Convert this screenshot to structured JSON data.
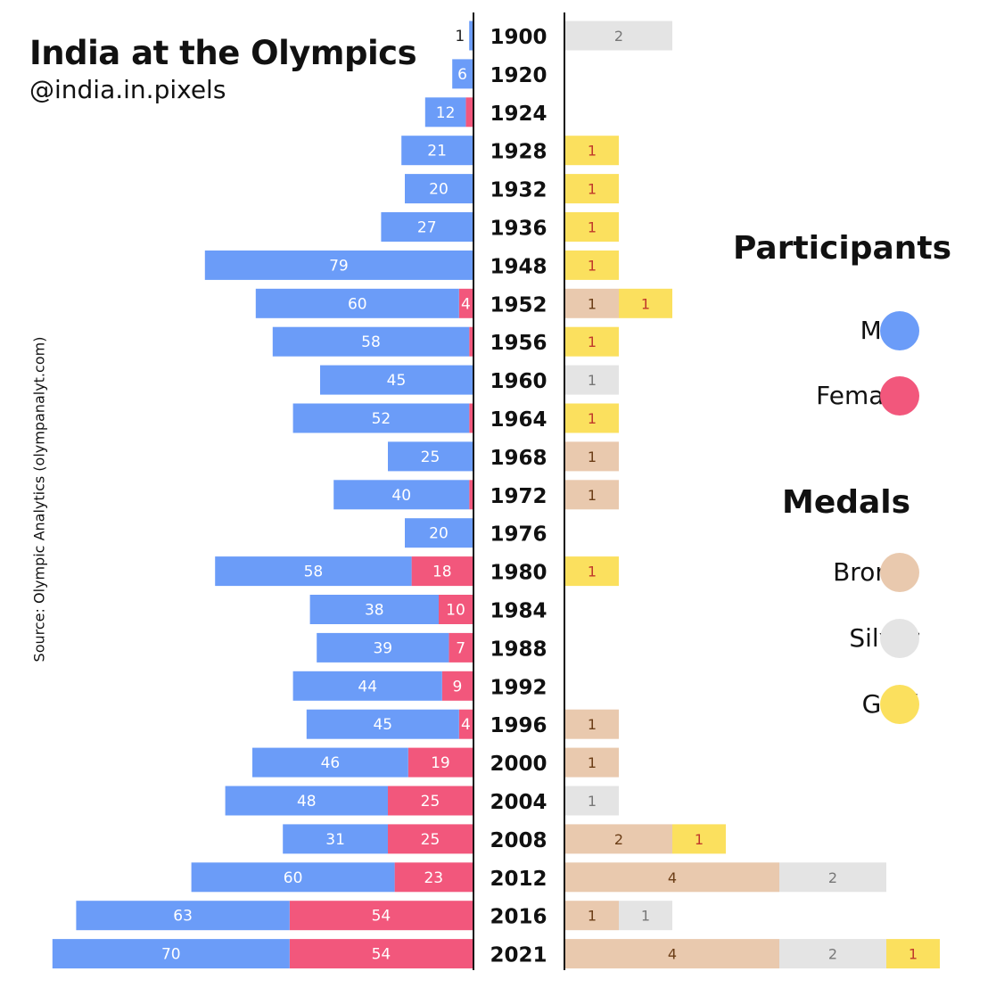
{
  "title": "India at the Olympics",
  "handle": "@india.in.pixels",
  "source": "Source: Olympic Analytics (olympanalyt.com)",
  "legend": {
    "participants_title": "Participants",
    "male": "Male",
    "females": "Females",
    "medals_title": "Medals",
    "bronze": "Bronze",
    "silver": "Silver",
    "gold": "Gold"
  },
  "colors": {
    "male": "#6b9cf8",
    "female": "#f2577c",
    "bronze": "#e9c9ae",
    "silver": "#e4e4e4",
    "gold": "#fbe05e",
    "gold_text": "#c0392b",
    "bronze_text": "#6b3d16",
    "silver_text": "#777777"
  },
  "chart_data": {
    "type": "bar",
    "orientation": "horizontal",
    "categories": [
      "1900",
      "1920",
      "1924",
      "1928",
      "1932",
      "1936",
      "1948",
      "1952",
      "1956",
      "1960",
      "1964",
      "1968",
      "1972",
      "1976",
      "1980",
      "1984",
      "1988",
      "1992",
      "1996",
      "2000",
      "2004",
      "2008",
      "2012",
      "2016",
      "2021"
    ],
    "participants": {
      "series": [
        {
          "name": "Male",
          "values": [
            1,
            6,
            12,
            21,
            20,
            27,
            79,
            60,
            58,
            45,
            52,
            25,
            40,
            20,
            58,
            38,
            39,
            44,
            45,
            46,
            48,
            31,
            60,
            63,
            70
          ]
        },
        {
          "name": "Females",
          "values": [
            0,
            0,
            2,
            0,
            0,
            0,
            0,
            4,
            1,
            0,
            1,
            0,
            1,
            0,
            18,
            10,
            7,
            9,
            4,
            19,
            25,
            25,
            23,
            54,
            54
          ]
        }
      ]
    },
    "medals": {
      "series": [
        {
          "name": "Bronze",
          "values": [
            0,
            0,
            0,
            0,
            0,
            0,
            0,
            1,
            0,
            0,
            0,
            1,
            1,
            0,
            0,
            0,
            0,
            0,
            1,
            1,
            0,
            2,
            4,
            1,
            4
          ]
        },
        {
          "name": "Silver",
          "values": [
            2,
            0,
            0,
            0,
            0,
            0,
            0,
            0,
            0,
            1,
            0,
            0,
            0,
            0,
            0,
            0,
            0,
            0,
            0,
            0,
            1,
            0,
            2,
            1,
            2
          ]
        },
        {
          "name": "Gold",
          "values": [
            0,
            0,
            0,
            1,
            1,
            1,
            1,
            1,
            1,
            0,
            1,
            0,
            0,
            0,
            1,
            0,
            0,
            0,
            0,
            0,
            0,
            1,
            0,
            0,
            1
          ]
        }
      ]
    },
    "legend": "right",
    "grid": false
  }
}
